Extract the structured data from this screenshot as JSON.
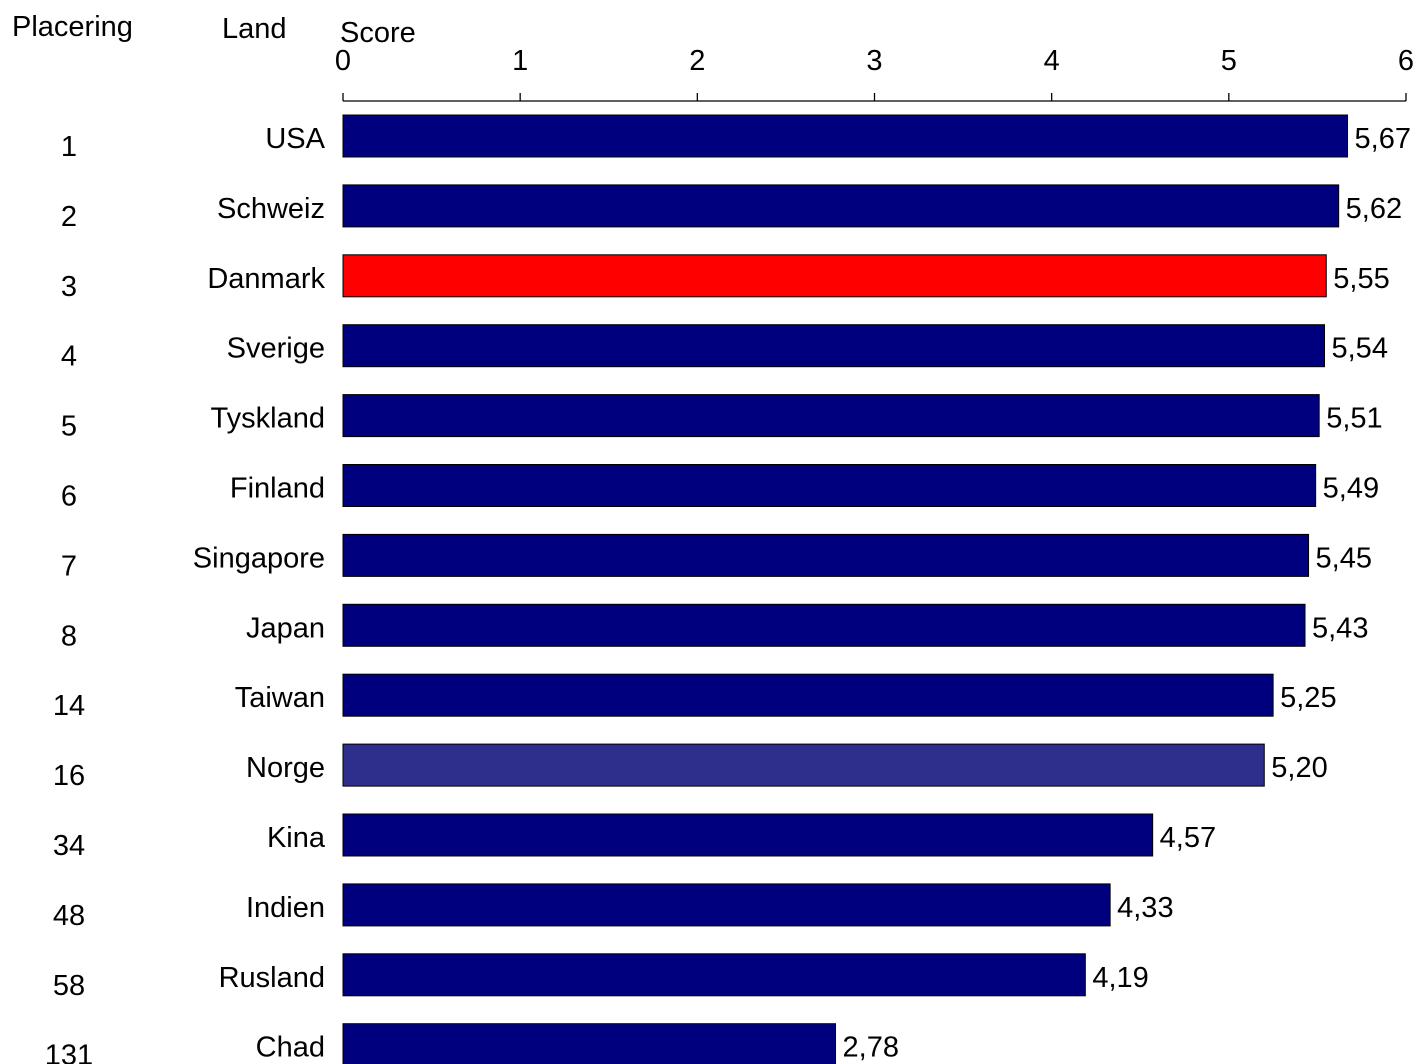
{
  "headers": {
    "rank": "Placering",
    "country": "Land",
    "score": "Score"
  },
  "chart_data": {
    "type": "bar",
    "orientation": "horizontal",
    "xlabel": "Score",
    "xlim": [
      0,
      6
    ],
    "xticks": [
      "0",
      "1",
      "2",
      "3",
      "4",
      "5",
      "6"
    ],
    "rows": [
      {
        "rank": "1",
        "country": "USA",
        "value": 5.67,
        "label": "5,67",
        "color": "#00007f"
      },
      {
        "rank": "2",
        "country": "Schweiz",
        "value": 5.62,
        "label": "5,62",
        "color": "#00007f"
      },
      {
        "rank": "3",
        "country": "Danmark",
        "value": 5.55,
        "label": "5,55",
        "color": "#ff0000"
      },
      {
        "rank": "4",
        "country": "Sverige",
        "value": 5.54,
        "label": "5,54",
        "color": "#00007f"
      },
      {
        "rank": "5",
        "country": "Tyskland",
        "value": 5.51,
        "label": "5,51",
        "color": "#00007f"
      },
      {
        "rank": "6",
        "country": "Finland",
        "value": 5.49,
        "label": "5,49",
        "color": "#00007f"
      },
      {
        "rank": "7",
        "country": "Singapore",
        "value": 5.45,
        "label": "5,45",
        "color": "#00007f"
      },
      {
        "rank": "8",
        "country": "Japan",
        "value": 5.43,
        "label": "5,43",
        "color": "#00007f"
      },
      {
        "rank": "14",
        "country": "Taiwan",
        "value": 5.25,
        "label": "5,25",
        "color": "#00007f"
      },
      {
        "rank": "16",
        "country": "Norge",
        "value": 5.2,
        "label": "5,20",
        "color": "#2e2e8c"
      },
      {
        "rank": "34",
        "country": "Kina",
        "value": 4.57,
        "label": "4,57",
        "color": "#00007f"
      },
      {
        "rank": "48",
        "country": "Indien",
        "value": 4.33,
        "label": "4,33",
        "color": "#00007f"
      },
      {
        "rank": "58",
        "country": "Rusland",
        "value": 4.19,
        "label": "4,19",
        "color": "#00007f"
      },
      {
        "rank": "131",
        "country": "Chad",
        "value": 2.78,
        "label": "2,78",
        "color": "#00007f"
      }
    ]
  }
}
